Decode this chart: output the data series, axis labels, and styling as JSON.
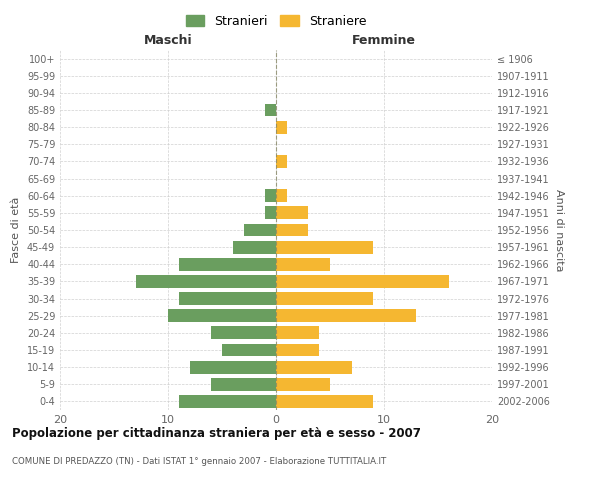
{
  "age_groups": [
    "0-4",
    "5-9",
    "10-14",
    "15-19",
    "20-24",
    "25-29",
    "30-34",
    "35-39",
    "40-44",
    "45-49",
    "50-54",
    "55-59",
    "60-64",
    "65-69",
    "70-74",
    "75-79",
    "80-84",
    "85-89",
    "90-94",
    "95-99",
    "100+"
  ],
  "birth_years": [
    "2002-2006",
    "1997-2001",
    "1992-1996",
    "1987-1991",
    "1982-1986",
    "1977-1981",
    "1972-1976",
    "1967-1971",
    "1962-1966",
    "1957-1961",
    "1952-1956",
    "1947-1951",
    "1942-1946",
    "1937-1941",
    "1932-1936",
    "1927-1931",
    "1922-1926",
    "1917-1921",
    "1912-1916",
    "1907-1911",
    "≤ 1906"
  ],
  "maschi": [
    9,
    6,
    8,
    5,
    6,
    10,
    9,
    13,
    9,
    4,
    3,
    1,
    1,
    0,
    0,
    0,
    0,
    1,
    0,
    0,
    0
  ],
  "femmine": [
    9,
    5,
    7,
    4,
    4,
    13,
    9,
    16,
    5,
    9,
    3,
    3,
    1,
    0,
    1,
    0,
    1,
    0,
    0,
    0,
    0
  ],
  "maschi_color": "#6a9e5f",
  "femmine_color": "#f5b731",
  "title": "Popolazione per cittadinanza straniera per età e sesso - 2007",
  "subtitle": "COMUNE DI PREDAZZO (TN) - Dati ISTAT 1° gennaio 2007 - Elaborazione TUTTITALIA.IT",
  "xlabel_left": "Maschi",
  "xlabel_right": "Femmine",
  "ylabel_left": "Fasce di età",
  "ylabel_right": "Anni di nascita",
  "legend_stranieri": "Stranieri",
  "legend_straniere": "Straniere",
  "xlim": 20,
  "background_color": "#ffffff",
  "grid_color": "#cccccc"
}
